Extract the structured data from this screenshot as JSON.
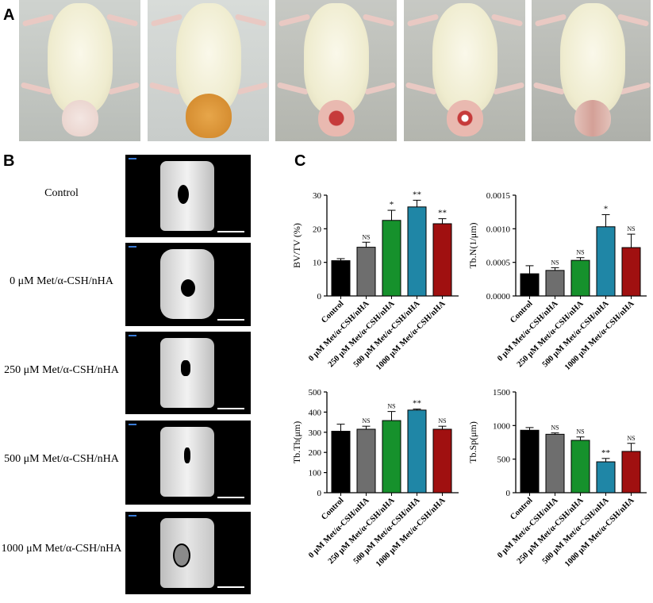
{
  "panels": {
    "a": "A",
    "b": "B",
    "c": "C"
  },
  "ct_rows": [
    {
      "label": "Control"
    },
    {
      "label": "0 μM Met/α-CSH/nHA"
    },
    {
      "label": "250 μM Met/α-CSH/nHA"
    },
    {
      "label": "500 μM Met/α-CSH/nHA"
    },
    {
      "label": "1000 μM Met/α-CSH/nHA"
    }
  ],
  "colors": [
    "#000000",
    "#6e6e6e",
    "#16912c",
    "#1f86a6",
    "#a01010"
  ],
  "chart_data": [
    {
      "type": "bar",
      "categories": [
        "Control",
        "0 μM Met/α-CSH/nHA",
        "250 μM Met/α-CSH/nHA",
        "500 μM Met/α-CSH/nHA",
        "1000 μM Met/α-CSH/nHA"
      ],
      "values": [
        10.5,
        14.5,
        22.5,
        26.5,
        21.5
      ],
      "errors": [
        0.6,
        1.5,
        3.0,
        2.0,
        1.5
      ],
      "annotations": [
        "",
        "NS",
        "*",
        "**",
        "**"
      ],
      "ylabel": "BV/TV (%)",
      "ylim": [
        0,
        30
      ],
      "yticks": [
        0,
        10,
        20,
        30
      ],
      "ytick_labels": [
        "0",
        "10",
        "20",
        "30"
      ]
    },
    {
      "type": "bar",
      "categories": [
        "Control",
        "0 μM Met/α-CSH/nHA",
        "250 μM Met/α-CSH/nHA",
        "500 μM Met/α-CSH/nHA",
        "1000 μM Met/α-CSH/nHA"
      ],
      "values": [
        0.00033,
        0.00038,
        0.00053,
        0.00103,
        0.00072
      ],
      "errors": [
        0.00012,
        4e-05,
        4e-05,
        0.00018,
        0.0002
      ],
      "annotations": [
        "",
        "NS",
        "NS",
        "*",
        "NS"
      ],
      "ylabel": "Tb.N(1/μm)",
      "ylim": [
        0,
        0.0015
      ],
      "yticks": [
        0,
        0.0005,
        0.001,
        0.0015
      ],
      "ytick_labels": [
        "0.0000",
        "0.0005",
        "0.0010",
        "0.0015"
      ]
    },
    {
      "type": "bar",
      "categories": [
        "Control",
        "0 μM Met/α-CSH/nHA",
        "250 μM Met/α-CSH/nHA",
        "500 μM Met/α-CSH/nHA",
        "1000 μM Met/α-CSH/nHA"
      ],
      "values": [
        305,
        315,
        358,
        410,
        315
      ],
      "errors": [
        35,
        15,
        45,
        5,
        15
      ],
      "annotations": [
        "",
        "NS",
        "NS",
        "**",
        "NS"
      ],
      "ylabel": "Tb.Th(μm)",
      "ylim": [
        0,
        500
      ],
      "yticks": [
        0,
        100,
        200,
        300,
        400,
        500
      ],
      "ytick_labels": [
        "0",
        "100",
        "200",
        "300",
        "400",
        "500"
      ]
    },
    {
      "type": "bar",
      "categories": [
        "Control",
        "0 μM Met/α-CSH/nHA",
        "250 μM Met/α-CSH/nHA",
        "500 μM Met/α-CSH/nHA",
        "1000 μM Met/α-CSH/nHA"
      ],
      "values": [
        930,
        870,
        780,
        460,
        615
      ],
      "errors": [
        40,
        20,
        50,
        50,
        120
      ],
      "annotations": [
        "",
        "NS",
        "NS",
        "**",
        "NS"
      ],
      "ylabel": "Tb.Sp(μm)",
      "ylim": [
        0,
        1500
      ],
      "yticks": [
        0,
        500,
        1000,
        1500
      ],
      "ytick_labels": [
        "0",
        "500",
        "1000",
        "1500"
      ]
    }
  ]
}
